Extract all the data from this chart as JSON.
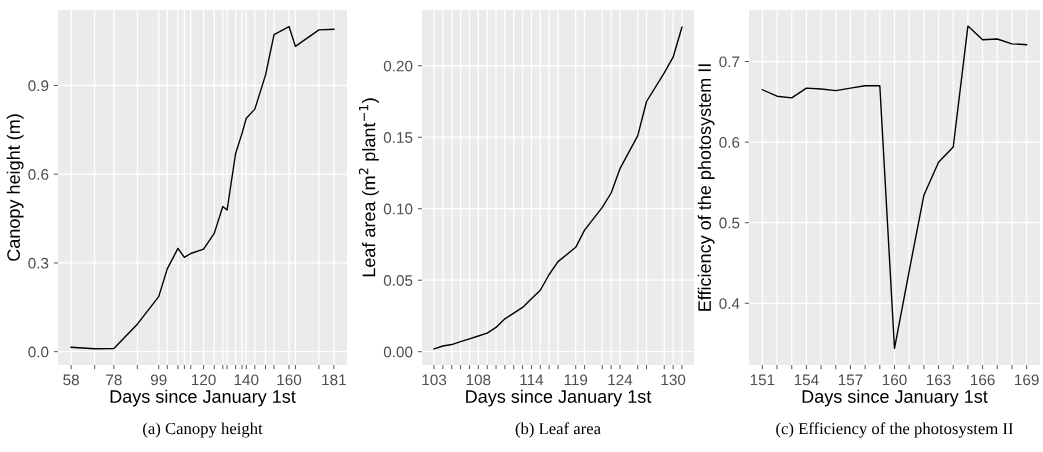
{
  "chart_data": [
    {
      "type": "line",
      "xlabel": "Days since January 1st",
      "ylabel": "Canopy height (m)",
      "annotations": [
        "(a) Canopy height"
      ],
      "x": [
        58,
        69,
        78,
        89,
        99,
        103,
        108,
        111,
        114,
        120,
        125,
        129,
        131,
        135,
        138,
        140,
        144,
        149,
        153,
        160,
        163,
        174,
        181
      ],
      "series": [
        {
          "color": "#000000",
          "values": [
            0.015,
            0.01,
            0.011,
            0.093,
            0.186,
            0.28,
            0.349,
            0.319,
            0.332,
            0.347,
            0.4,
            0.491,
            0.479,
            0.67,
            0.738,
            0.789,
            0.82,
            0.935,
            1.072,
            1.099,
            1.032,
            1.088,
            1.09
          ]
        }
      ],
      "xlim": [
        51.85,
        187.15
      ],
      "ylim": [
        -0.045,
        1.155
      ],
      "xticks": [
        58,
        {
          "value": 69,
          "label": null
        },
        78,
        {
          "value": 89,
          "label": null
        },
        99,
        {
          "value": 103,
          "label": null
        },
        {
          "value": 108,
          "label": null
        },
        {
          "value": 111,
          "label": null
        },
        {
          "value": 114,
          "label": null
        },
        120,
        {
          "value": 125,
          "label": null
        },
        {
          "value": 129,
          "label": null
        },
        {
          "value": 131,
          "label": null
        },
        {
          "value": 135,
          "label": null
        },
        {
          "value": 138,
          "label": null
        },
        140,
        {
          "value": 144,
          "label": null
        },
        {
          "value": 149,
          "label": null
        },
        {
          "value": 153,
          "label": null
        },
        160,
        {
          "value": 163,
          "label": null
        },
        {
          "value": 174,
          "label": null
        },
        181
      ],
      "yticks": [
        {
          "value": 0,
          "label": "0.0"
        },
        0.3,
        0.6,
        0.9
      ],
      "grid": true,
      "legend": false
    },
    {
      "type": "line",
      "xlabel": "Days since January 1st",
      "ylabel": "Leaf area (m$^{2}$ plant$^{−1}$)",
      "annotations": [
        "(b) Leaf area"
      ],
      "x": [
        103,
        104,
        105,
        106,
        107,
        108,
        109,
        110,
        111,
        112,
        113,
        114,
        115,
        116,
        117,
        119,
        120,
        122,
        123,
        124,
        126,
        127,
        129,
        130,
        131
      ],
      "series": [
        {
          "color": "#000000",
          "values": [
            0.002,
            0.004,
            0.005,
            0.007,
            0.009,
            0.011,
            0.013,
            0.017,
            0.023,
            0.027,
            0.031,
            0.037,
            0.043,
            0.054,
            0.063,
            0.073,
            0.085,
            0.101,
            0.111,
            0.128,
            0.151,
            0.175,
            0.195,
            0.206,
            0.227
          ]
        }
      ],
      "xlim": [
        101.64,
        132.36
      ],
      "ylim": [
        -0.0093,
        0.239
      ],
      "xticks": [
        103,
        {
          "value": 104,
          "label": null
        },
        {
          "value": 105,
          "label": null
        },
        {
          "value": 106,
          "label": null
        },
        {
          "value": 107,
          "label": null
        },
        108,
        {
          "value": 109,
          "label": null
        },
        {
          "value": 110,
          "label": null
        },
        {
          "value": 111,
          "label": null
        },
        {
          "value": 112,
          "label": null
        },
        {
          "value": 113,
          "label": null
        },
        114,
        {
          "value": 115,
          "label": null
        },
        {
          "value": 116,
          "label": null
        },
        {
          "value": 117,
          "label": null
        },
        119,
        {
          "value": 120,
          "label": null
        },
        {
          "value": 122,
          "label": null
        },
        {
          "value": 123,
          "label": null
        },
        124,
        {
          "value": 126,
          "label": null
        },
        {
          "value": 127,
          "label": null
        },
        {
          "value": 129,
          "label": null
        },
        130,
        {
          "value": 131,
          "label": null
        }
      ],
      "yticks": [
        {
          "value": 0,
          "label": "0.00"
        },
        {
          "value": 0.05,
          "label": "0.05"
        },
        {
          "value": 0.1,
          "label": "0.10"
        },
        {
          "value": 0.15,
          "label": "0.15"
        },
        {
          "value": 0.2,
          "label": "0.20"
        }
      ],
      "grid": true,
      "legend": false
    },
    {
      "type": "line",
      "xlabel": "Days since January 1st",
      "ylabel": "Efficiency of the photosystem II",
      "annotations": [
        "(c) Efficiency of the photosystem II"
      ],
      "x": [
        151,
        152,
        153,
        154,
        155,
        156,
        157,
        158,
        159,
        160,
        161,
        162,
        163,
        164,
        165,
        166,
        167,
        168,
        169
      ],
      "series": [
        {
          "color": "#000000",
          "values": [
            0.665,
            0.657,
            0.655,
            0.667,
            0.666,
            0.664,
            0.667,
            0.67,
            0.67,
            0.344,
            0.44,
            0.534,
            0.575,
            0.594,
            0.744,
            0.727,
            0.728,
            0.722,
            0.721
          ]
        }
      ],
      "xlim": [
        150.09,
        169.91
      ],
      "ylim": [
        0.3234,
        0.764
      ],
      "xticks": [
        151,
        {
          "value": 152,
          "label": null
        },
        {
          "value": 153,
          "label": null
        },
        154,
        {
          "value": 155,
          "label": null
        },
        {
          "value": 156,
          "label": null
        },
        157,
        {
          "value": 158,
          "label": null
        },
        {
          "value": 159,
          "label": null
        },
        160,
        {
          "value": 161,
          "label": null
        },
        {
          "value": 162,
          "label": null
        },
        163,
        {
          "value": 164,
          "label": null
        },
        {
          "value": 165,
          "label": null
        },
        166,
        {
          "value": 167,
          "label": null
        },
        {
          "value": 168,
          "label": null
        },
        169
      ],
      "yticks": [
        0.4,
        0.5,
        0.6,
        0.7
      ],
      "grid": true,
      "legend": false
    }
  ]
}
